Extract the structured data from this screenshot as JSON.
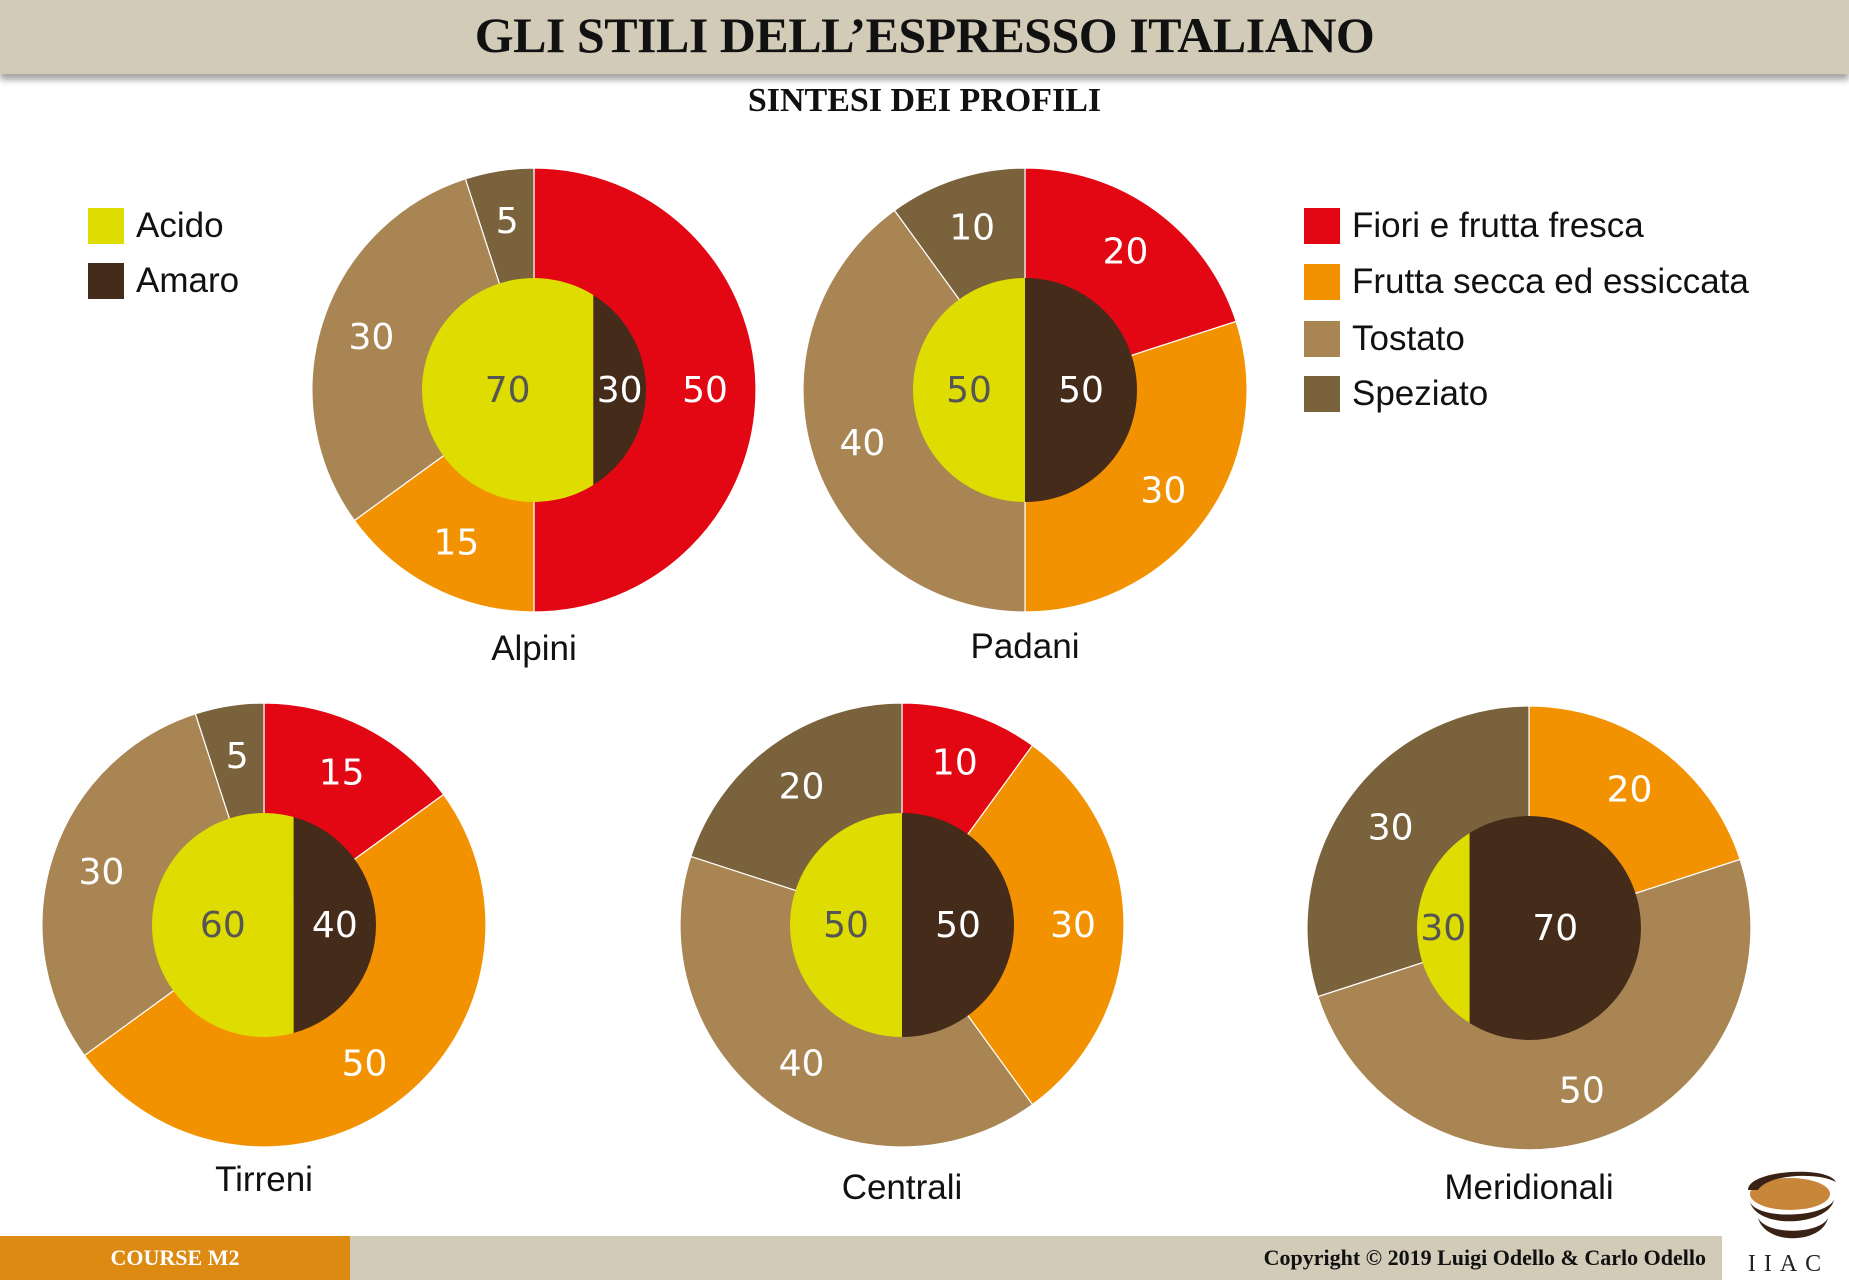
{
  "header": {
    "title": "GLI STILI DELL’ESPRESSO ITALIANO",
    "subtitle": "SINTESI DEI PROFILI"
  },
  "footer": {
    "course": "COURSE M2",
    "copyright": "Copyright © 2019 Luigi Odello & Carlo Odello",
    "logo_text": "IIAC"
  },
  "colors": {
    "Acido": "#dedc00",
    "Amaro": "#452b1a",
    "Fiori e frutta fresca": "#e30613",
    "Frutta secca ed essiccata": "#f39200",
    "Tostato": "#a88553",
    "Speziato": "#7a623c"
  },
  "chart_data": {
    "type": "donut",
    "title": "SINTESI DEI PROFILI",
    "inner_legend": [
      "Acido",
      "Amaro"
    ],
    "outer_legend": [
      "Fiori e frutta fresca",
      "Frutta secca ed essiccata",
      "Tostato",
      "Speziato"
    ],
    "charts": [
      {
        "name": "Alpini",
        "inner": [
          70,
          30
        ],
        "outer": [
          50,
          15,
          30,
          5
        ]
      },
      {
        "name": "Padani",
        "inner": [
          50,
          50
        ],
        "outer": [
          20,
          30,
          40,
          10
        ]
      },
      {
        "name": "Tirreni",
        "inner": [
          60,
          40
        ],
        "outer": [
          15,
          50,
          30,
          5
        ]
      },
      {
        "name": "Centrali",
        "inner": [
          50,
          50
        ],
        "outer": [
          10,
          30,
          40,
          20
        ]
      },
      {
        "name": "Meridionali",
        "inner": [
          30,
          70
        ],
        "outer": [
          0,
          20,
          50,
          30
        ]
      }
    ]
  }
}
